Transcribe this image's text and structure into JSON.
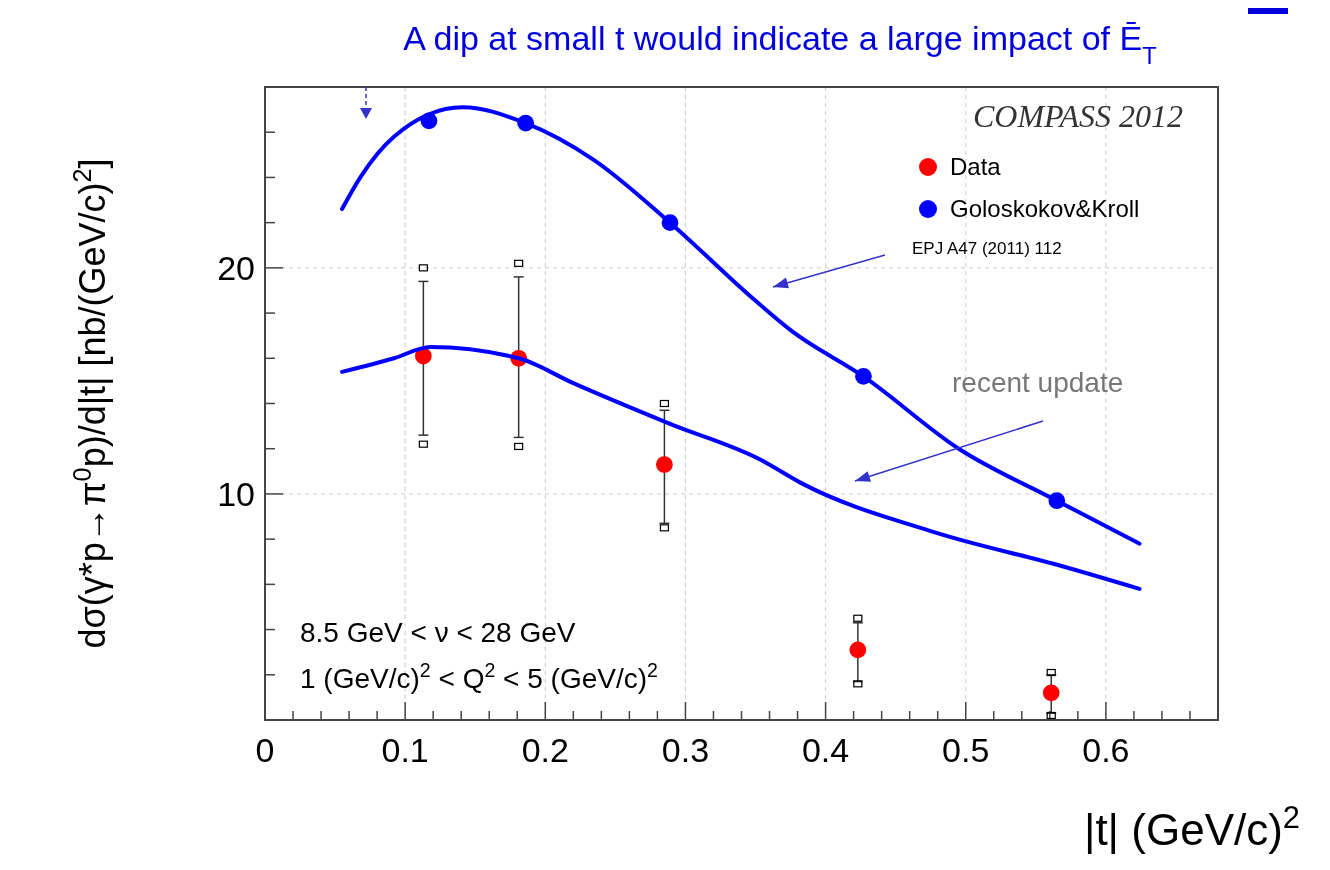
{
  "chart_data": {
    "type": "scatter",
    "title": "A dip at small t would indicate a large impact of Ē$_{T}$",
    "xlabel": "|t| (GeV/c)$^{2}$",
    "ylabel": "dσ(γ*p→π$^{0}$p)/d|t|  [nb/(GeV/c)$^{2}$]",
    "legend_title": "COMPASS 2012",
    "legend": "top right",
    "grid": true,
    "xlim": [
      0,
      0.68
    ],
    "ylim": [
      0,
      28
    ],
    "xticks": [
      0,
      {
        "value": 0.02,
        "label": null
      },
      {
        "value": 0.04,
        "label": null
      },
      {
        "value": 0.06,
        "label": null
      },
      {
        "value": 0.08,
        "label": null
      },
      0.1,
      {
        "value": 0.12,
        "label": null
      },
      {
        "value": 0.14,
        "label": null
      },
      {
        "value": 0.16,
        "label": null
      },
      {
        "value": 0.18,
        "label": null
      },
      0.2,
      {
        "value": 0.22,
        "label": null
      },
      {
        "value": 0.24,
        "label": null
      },
      {
        "value": 0.26,
        "label": null
      },
      {
        "value": 0.28,
        "label": null
      },
      0.3,
      {
        "value": 0.32,
        "label": null
      },
      {
        "value": 0.34,
        "label": null
      },
      {
        "value": 0.36,
        "label": null
      },
      {
        "value": 0.38,
        "label": null
      },
      0.4,
      {
        "value": 0.42,
        "label": null
      },
      {
        "value": 0.44,
        "label": null
      },
      {
        "value": 0.46,
        "label": null
      },
      {
        "value": 0.48,
        "label": null
      },
      0.5,
      {
        "value": 0.52,
        "label": null
      },
      {
        "value": 0.54,
        "label": null
      },
      {
        "value": 0.56,
        "label": null
      },
      {
        "value": 0.58,
        "label": null
      },
      0.6,
      {
        "value": 0.62,
        "label": null
      },
      {
        "value": 0.64,
        "label": null
      },
      {
        "value": 0.66,
        "label": null
      }
    ],
    "yticks": [
      {
        "value": 2,
        "label": null
      },
      {
        "value": 4,
        "label": null
      },
      {
        "value": 6,
        "label": null
      },
      {
        "value": 8,
        "label": null
      },
      10,
      {
        "value": 12,
        "label": null
      },
      {
        "value": 14,
        "label": null
      },
      {
        "value": 16,
        "label": null
      },
      {
        "value": 18,
        "label": null
      },
      20,
      {
        "value": 22,
        "label": null
      },
      {
        "value": 24,
        "label": null
      },
      {
        "value": 26,
        "label": null
      }
    ],
    "series": [
      {
        "type": "scatter",
        "name": "Data",
        "color": "#ff0000",
        "marker": "circle",
        "x": [
          0.113,
          0.181,
          0.285,
          0.423,
          0.561
        ],
        "values": [
          16.1,
          16.0,
          11.3,
          3.1,
          1.2
        ],
        "errors": [
          [
            12.6,
            19.4
          ],
          [
            12.5,
            19.6
          ],
          [
            8.7,
            13.7
          ],
          [
            1.7,
            4.3
          ],
          [
            0.3,
            2.0
          ]
        ]
      },
      {
        "type": "scatter",
        "color": "#000000",
        "marker": "square",
        "x": [
          0.113,
          0.181,
          0.285,
          0.423,
          0.561,
          0.113,
          0.181,
          0.285,
          0.423,
          0.561
        ],
        "values": [
          20.0,
          20.2,
          14.0,
          4.5,
          2.1,
          12.2,
          12.1,
          8.5,
          1.6,
          0.2
        ]
      },
      {
        "type": "scatter",
        "name": "Goloskokov&Kroll",
        "color": "#0000ff",
        "marker": "circle",
        "x": [
          0.117,
          0.186,
          0.289,
          0.427,
          0.565
        ],
        "values": [
          26.5,
          26.4,
          22.0,
          15.2,
          9.7
        ]
      },
      {
        "type": "line",
        "color": "#0000ff",
        "line_style": "solid",
        "x": [
          0.055,
          0.068,
          0.092,
          0.141,
          0.186,
          0.234,
          0.289,
          0.349,
          0.376,
          0.427,
          0.495,
          0.565,
          0.624
        ],
        "values": [
          22.6,
          24.0,
          25.8,
          27.1,
          26.4,
          24.8,
          22.0,
          18.6,
          17.2,
          15.2,
          12.0,
          9.7,
          7.8
        ]
      },
      {
        "type": "line",
        "color": "#0000ff",
        "line_style": "solid",
        "x": [
          0.055,
          0.092,
          0.118,
          0.181,
          0.22,
          0.289,
          0.354,
          0.382,
          0.478,
          0.569,
          0.624
        ],
        "values": [
          15.4,
          16.0,
          16.5,
          16.0,
          14.9,
          13.1,
          11.5,
          10.5,
          8.3,
          6.8,
          5.8
        ]
      }
    ],
    "annotations": [
      "EPJ A47 (2011) 112",
      "recent update",
      "8.5 GeV < ν < 28 GeV",
      "1 (GeV/c)$^{2}$ < Q$^{2}$ < 5 (GeV/c)$^{2}$"
    ]
  }
}
